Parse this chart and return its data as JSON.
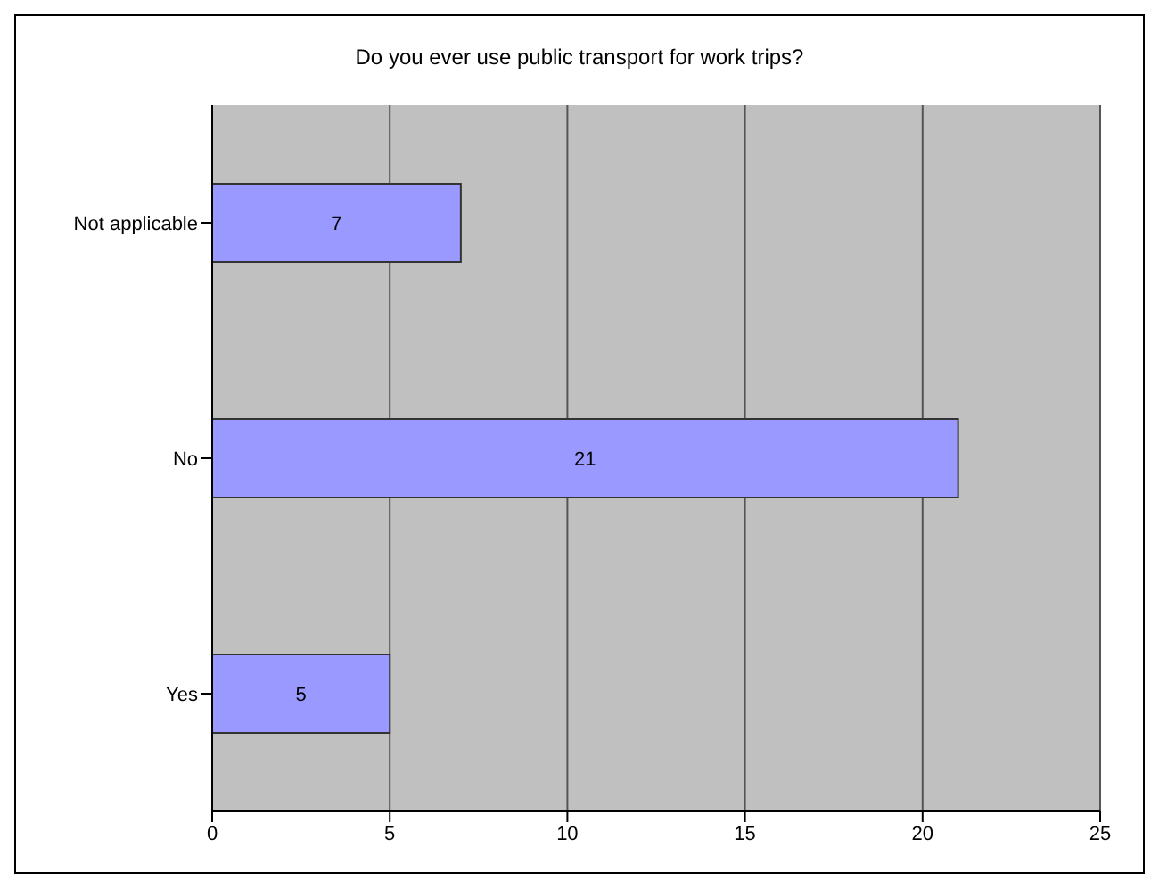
{
  "chart_data": {
    "type": "bar",
    "orientation": "horizontal",
    "title": "Do you ever use public transport for work trips?",
    "categories": [
      "Not applicable",
      "No",
      "Yes"
    ],
    "values": [
      7,
      21,
      5
    ],
    "color": "#9999ff",
    "xlim": [
      0,
      25
    ],
    "xticks": [
      0,
      5,
      10,
      15,
      20,
      25
    ],
    "grid": "x",
    "data_labels": true
  }
}
